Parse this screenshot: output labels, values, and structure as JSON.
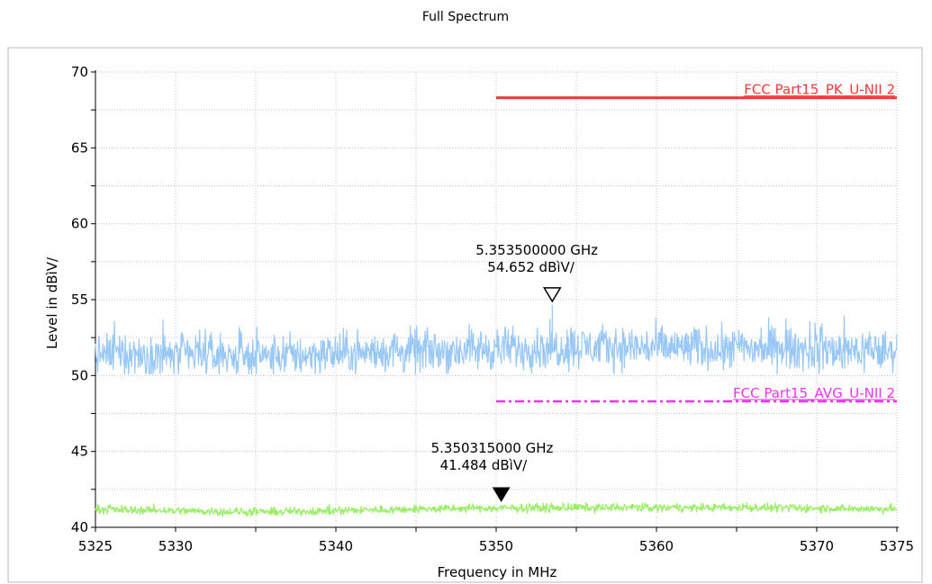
{
  "chart_data": {
    "type": "line",
    "title": "Full Spectrum",
    "xlabel": "Frequency in MHz",
    "ylabel": "Level in dBìV/",
    "xlim": [
      5325,
      5375
    ],
    "ylim": [
      40,
      70
    ],
    "x_ticks": [
      "5325",
      "5330",
      "5340",
      "5350",
      "5360",
      "5370",
      "5375"
    ],
    "x_tick_values": [
      5325,
      5330,
      5340,
      5350,
      5360,
      5370,
      5375
    ],
    "y_ticks": [
      "40",
      "45",
      "50",
      "55",
      "60",
      "65",
      "70"
    ],
    "y_tick_values": [
      40,
      45,
      50,
      55,
      60,
      65,
      70
    ],
    "grid": true,
    "series": [
      {
        "name": "",
        "kind": "noise-trace",
        "color": "#99c8f6",
        "x_range": [
          5325,
          5375
        ],
        "min": 50.1,
        "max": 54.7,
        "baseline": [
          [
            5325,
            51.4
          ],
          [
            5335,
            51.3
          ],
          [
            5345,
            51.6
          ],
          [
            5355,
            51.9
          ],
          [
            5365,
            51.8
          ],
          [
            5375,
            51.6
          ]
        ]
      },
      {
        "name": "",
        "kind": "noise-trace",
        "color": "#99ee66",
        "x_range": [
          5325,
          5375
        ],
        "min": 40.7,
        "max": 41.6,
        "baseline": [
          [
            5325,
            41.2
          ],
          [
            5335,
            41.0
          ],
          [
            5345,
            41.2
          ],
          [
            5355,
            41.3
          ],
          [
            5365,
            41.3
          ],
          [
            5375,
            41.2
          ]
        ]
      }
    ],
    "limit_lines": [
      {
        "name": "FCC Part15_PK_U-NII 2",
        "color": "#ee3a3a",
        "style": "solid",
        "x": [
          5350,
          5375
        ],
        "y": 68.3
      },
      {
        "name": "FCC Part15_AVG_U-NII 2",
        "color": "#ee33ee",
        "style": "dashdot",
        "x": [
          5350,
          5375
        ],
        "y": 48.3
      }
    ],
    "markers": [
      {
        "type": "open-triangle",
        "x": 5353.5,
        "y": 54.652,
        "line1": "5.353500000 GHz",
        "line2": "54.652 dBìV/"
      },
      {
        "type": "filled-triangle",
        "x": 5350.315,
        "y": 41.484,
        "line1": "5.350315000 GHz",
        "line2": "41.484 dBìV/"
      }
    ]
  }
}
